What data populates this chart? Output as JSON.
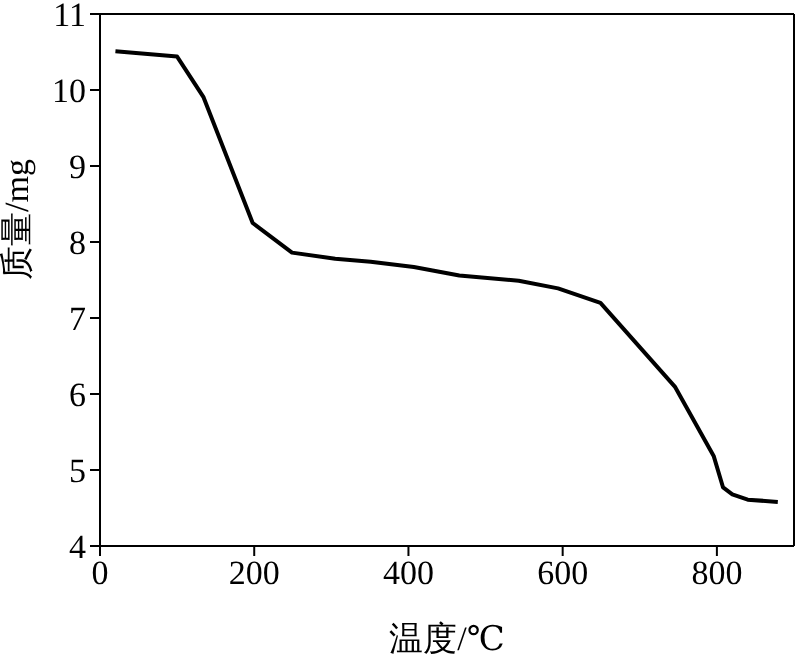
{
  "chart_data": {
    "type": "line",
    "xlabel": "温度/℃",
    "ylabel": "质量/mg",
    "x": [
      20,
      100,
      134,
      198,
      249,
      305,
      351,
      407,
      466,
      543,
      594,
      649,
      746,
      796,
      808,
      820,
      840,
      879
    ],
    "series": [
      {
        "color": "#000000",
        "values": [
          10.51,
          10.44,
          9.91,
          8.25,
          7.86,
          7.78,
          7.74,
          7.67,
          7.56,
          7.49,
          7.39,
          7.2,
          6.09,
          5.18,
          4.77,
          4.68,
          4.61,
          4.58
        ]
      }
    ],
    "xlim": [
      0,
      900
    ],
    "xticks": [
      0,
      200,
      400,
      600,
      800
    ],
    "ylim": [
      4,
      11
    ],
    "yticks": [
      4,
      5,
      6,
      7,
      8,
      9,
      10,
      11
    ],
    "grid": false,
    "legend": false,
    "marker": "none",
    "line_style": "solid"
  }
}
